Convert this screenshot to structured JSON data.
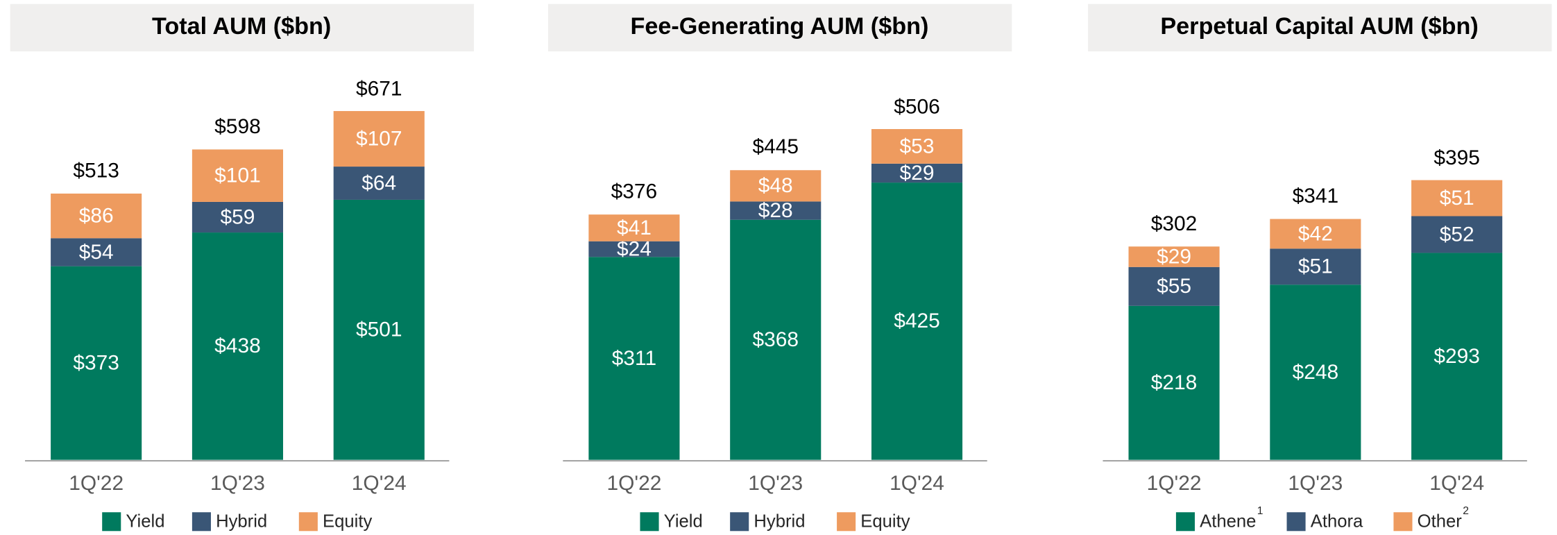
{
  "chart_data": [
    {
      "type": "bar",
      "stacked": true,
      "title": "Total AUM ($bn)",
      "categories": [
        "1Q'22",
        "1Q'23",
        "1Q'24"
      ],
      "ylim": [
        0,
        724
      ],
      "series": [
        {
          "name": "Yield",
          "color": "#007a5e",
          "values": [
            373,
            438,
            501
          ],
          "value_labels": [
            "$373",
            "$438",
            "$501"
          ]
        },
        {
          "name": "Hybrid",
          "color": "#3a5676",
          "values": [
            54,
            59,
            64
          ],
          "value_labels": [
            "$54",
            "$59",
            "$64"
          ]
        },
        {
          "name": "Equity",
          "color": "#ee9b5f",
          "values": [
            86,
            101,
            107
          ],
          "value_labels": [
            "$86",
            "$101",
            "$107"
          ]
        }
      ],
      "totals": [
        513,
        598,
        671
      ],
      "total_labels": [
        "$513",
        "$598",
        "$671"
      ]
    },
    {
      "type": "bar",
      "stacked": true,
      "title": "Fee-Generating AUM ($bn)",
      "categories": [
        "1Q'22",
        "1Q'23",
        "1Q'24"
      ],
      "ylim": [
        0,
        576
      ],
      "series": [
        {
          "name": "Yield",
          "color": "#007a5e",
          "values": [
            311,
            368,
            425
          ],
          "value_labels": [
            "$311",
            "$368",
            "$425"
          ]
        },
        {
          "name": "Hybrid",
          "color": "#3a5676",
          "values": [
            24,
            28,
            29
          ],
          "value_labels": [
            "$24",
            "$28",
            "$29"
          ]
        },
        {
          "name": "Equity",
          "color": "#ee9b5f",
          "values": [
            41,
            48,
            53
          ],
          "value_labels": [
            "$41",
            "$48",
            "$53"
          ]
        }
      ],
      "totals": [
        376,
        445,
        506
      ],
      "total_labels": [
        "$376",
        "$445",
        "$506"
      ]
    },
    {
      "type": "bar",
      "stacked": true,
      "title": "Perpetual Capital AUM ($bn)",
      "categories": [
        "1Q'22",
        "1Q'23",
        "1Q'24"
      ],
      "ylim": [
        0,
        532
      ],
      "series": [
        {
          "name": "Athene",
          "footnote": "1",
          "color": "#007a5e",
          "values": [
            218,
            248,
            293
          ],
          "value_labels": [
            "$218",
            "$248",
            "$293"
          ]
        },
        {
          "name": "Athora",
          "color": "#3a5676",
          "values": [
            55,
            51,
            52
          ],
          "value_labels": [
            "$55",
            "$51",
            "$52"
          ]
        },
        {
          "name": "Other",
          "footnote": "2",
          "color": "#ee9b5f",
          "values": [
            29,
            42,
            51
          ],
          "value_labels": [
            "$29",
            "$42",
            "$51"
          ]
        }
      ],
      "totals": [
        302,
        341,
        395
      ],
      "total_labels": [
        "$302",
        "$341",
        "$395"
      ]
    }
  ]
}
